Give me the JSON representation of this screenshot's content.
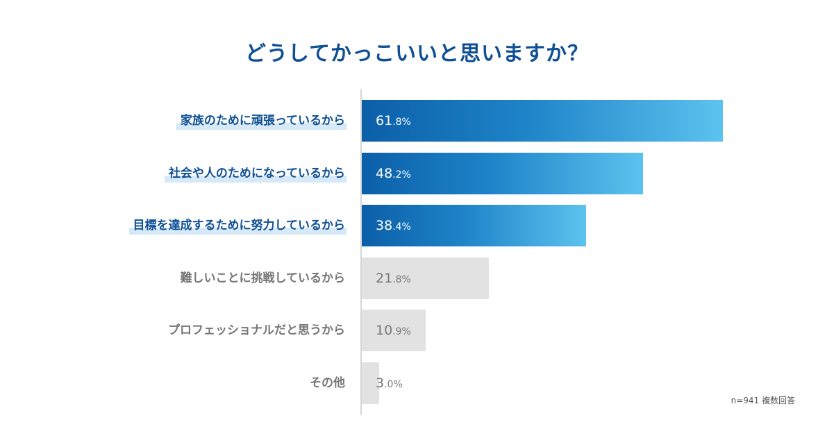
{
  "title": "どうしてかっこいいと思いますか？",
  "note": "n=941 複数回答",
  "colors": {
    "title": "#0e4f95",
    "highlight_gradient_start": "#0b5fa8",
    "highlight_gradient_end": "#5cc2ee",
    "gray_bar": "#e2e2e2",
    "gray_text": "#777777",
    "label_highlight": "#d7e8f6"
  },
  "chart_data": {
    "type": "bar",
    "orientation": "horizontal",
    "title": "どうしてかっこいいと思いますか？",
    "categories": [
      "家族のために頑張っているから",
      "社会や人のためになっているから",
      "目標を達成するために努力しているから",
      "難しいことに挑戦しているから",
      "プロフェッショナルだと思うから",
      "その他"
    ],
    "values": [
      61.8,
      48.2,
      38.4,
      21.8,
      10.9,
      3.0
    ],
    "value_labels": [
      "61.8",
      "48.2",
      "38.4",
      "21.8",
      "10.9",
      "3.0"
    ],
    "unit": "%",
    "highlighted": [
      true,
      true,
      true,
      false,
      false,
      false
    ],
    "xlim": [
      0,
      100
    ],
    "grid": false,
    "legend": "none"
  }
}
